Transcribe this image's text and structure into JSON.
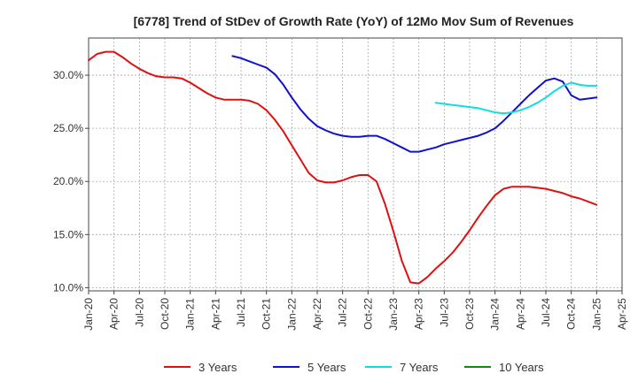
{
  "chart_data": {
    "type": "line",
    "title": "[6778]  Trend of StDev of Growth Rate (YoY) of 12Mo Mov Sum of Revenues",
    "xlabel": "",
    "ylabel": "",
    "ylim": [
      9.7,
      33.5
    ],
    "yticks": [
      10,
      15,
      20,
      25,
      30
    ],
    "ytick_labels": [
      "10.0%",
      "15.0%",
      "20.0%",
      "25.0%",
      "30.0%"
    ],
    "x_range_months": [
      0,
      63
    ],
    "xtick_months": [
      0,
      3,
      6,
      9,
      12,
      15,
      18,
      21,
      24,
      27,
      30,
      33,
      36,
      39,
      42,
      45,
      48,
      51,
      54,
      57,
      60,
      63
    ],
    "xtick_labels": [
      "Jan-20",
      "Apr-20",
      "Jul-20",
      "Oct-20",
      "Jan-21",
      "Apr-21",
      "Jul-21",
      "Oct-21",
      "Jan-22",
      "Apr-22",
      "Jul-22",
      "Oct-22",
      "Jan-23",
      "Apr-23",
      "Jul-23",
      "Oct-23",
      "Jan-24",
      "Apr-24",
      "Jul-24",
      "Oct-24",
      "Jan-25",
      "Apr-25"
    ],
    "grid": true,
    "legend_position": "bottom",
    "series": [
      {
        "name": "3 Years",
        "color": "#dd1111",
        "x": [
          0,
          1,
          2,
          3,
          4,
          5,
          6,
          7,
          8,
          9,
          10,
          11,
          12,
          13,
          14,
          15,
          16,
          17,
          18,
          19,
          20,
          21,
          22,
          23,
          24,
          25,
          26,
          27,
          28,
          29,
          30,
          31,
          32,
          33,
          34,
          35,
          36,
          37,
          38,
          39,
          40,
          41,
          42,
          43,
          44,
          45,
          46,
          47,
          48,
          49,
          50,
          51,
          52,
          53,
          54,
          55,
          56,
          57,
          58,
          59,
          60
        ],
        "values": [
          31.4,
          32.0,
          32.2,
          32.2,
          31.7,
          31.1,
          30.6,
          30.2,
          29.9,
          29.8,
          29.8,
          29.7,
          29.3,
          28.8,
          28.3,
          27.9,
          27.7,
          27.7,
          27.7,
          27.6,
          27.3,
          26.7,
          25.8,
          24.7,
          23.4,
          22.1,
          20.8,
          20.1,
          19.9,
          19.9,
          20.1,
          20.4,
          20.6,
          20.6,
          20.0,
          17.9,
          15.3,
          12.5,
          10.5,
          10.4,
          11.0,
          11.8,
          12.5,
          13.3,
          14.3,
          15.4,
          16.6,
          17.7,
          18.7,
          19.3,
          19.5,
          19.5,
          19.5,
          19.4,
          19.3,
          19.1,
          18.9,
          18.6,
          18.4,
          18.1,
          17.8
        ]
      },
      {
        "name": "5 Years",
        "color": "#1111cc",
        "x": [
          17,
          18,
          19,
          20,
          21,
          22,
          23,
          24,
          25,
          26,
          27,
          28,
          29,
          30,
          31,
          32,
          33,
          34,
          35,
          36,
          37,
          38,
          39,
          40,
          41,
          42,
          43,
          44,
          45,
          46,
          47,
          48,
          49,
          50,
          51,
          52,
          53,
          54,
          55,
          56,
          57,
          58,
          59,
          60
        ],
        "values": [
          31.8,
          31.6,
          31.3,
          31.0,
          30.7,
          30.1,
          29.1,
          27.9,
          26.8,
          25.9,
          25.2,
          24.8,
          24.5,
          24.3,
          24.2,
          24.2,
          24.3,
          24.3,
          24.0,
          23.6,
          23.2,
          22.8,
          22.8,
          23.0,
          23.2,
          23.5,
          23.7,
          23.9,
          24.1,
          24.3,
          24.6,
          25.0,
          25.7,
          26.5,
          27.3,
          28.1,
          28.8,
          29.5,
          29.7,
          29.4,
          28.1,
          27.7,
          27.8,
          27.9
        ]
      },
      {
        "name": "7 Years",
        "color": "#11dddd",
        "x": [
          41,
          42,
          43,
          44,
          45,
          46,
          47,
          48,
          49,
          50,
          51,
          52,
          53,
          54,
          55,
          56,
          57,
          58,
          59,
          60
        ],
        "values": [
          27.4,
          27.3,
          27.2,
          27.1,
          27.0,
          26.9,
          26.7,
          26.5,
          26.4,
          26.5,
          26.7,
          27.0,
          27.4,
          27.9,
          28.5,
          29.0,
          29.3,
          29.1,
          29.0,
          29.0
        ]
      },
      {
        "name": "10 Years",
        "color": "#118811",
        "x": [],
        "values": []
      }
    ]
  }
}
